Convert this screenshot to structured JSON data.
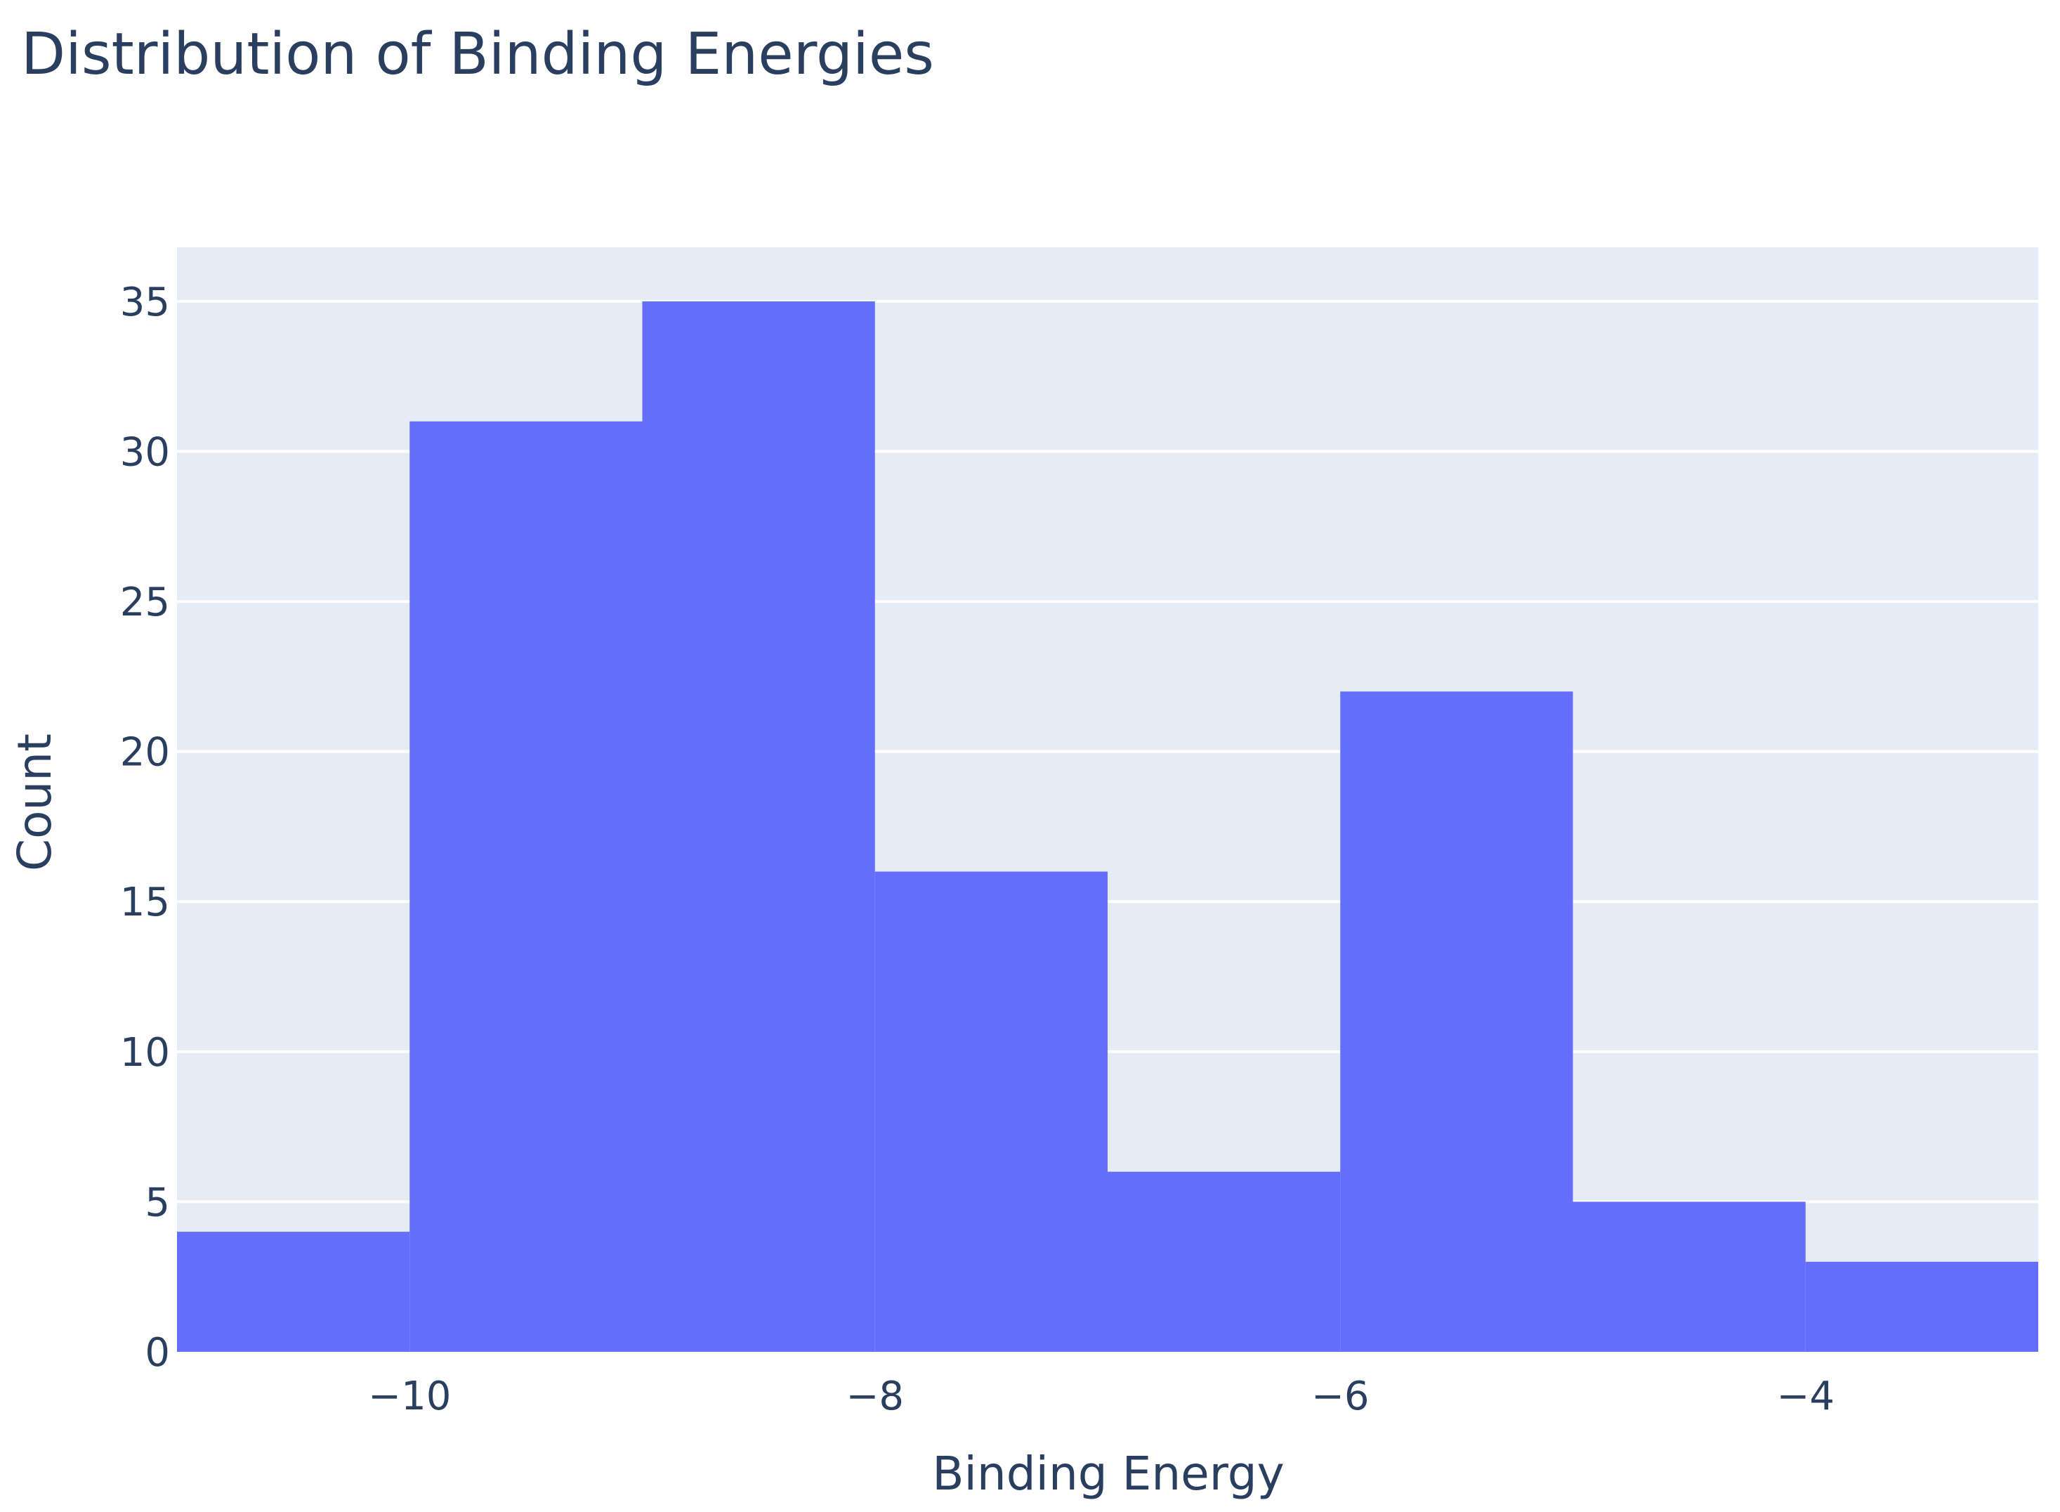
{
  "chart_data": {
    "type": "bar",
    "title": "Distribution of Binding Energies",
    "xlabel": "Binding Energy",
    "ylabel": "Count",
    "bins": [
      {
        "start": -11,
        "end": -10,
        "count": 4
      },
      {
        "start": -10,
        "end": -9,
        "count": 31
      },
      {
        "start": -9,
        "end": -8,
        "count": 35
      },
      {
        "start": -8,
        "end": -7,
        "count": 16
      },
      {
        "start": -7,
        "end": -6,
        "count": 6
      },
      {
        "start": -6,
        "end": -5,
        "count": 22
      },
      {
        "start": -5,
        "end": -4,
        "count": 5
      },
      {
        "start": -4,
        "end": -3,
        "count": 3
      }
    ],
    "xlim": [
      -11,
      -3
    ],
    "ylim": [
      0,
      36.8
    ],
    "x_ticks": [
      -10,
      -8,
      -6,
      -4
    ],
    "x_tick_labels": [
      "−10",
      "−8",
      "−6",
      "−4"
    ],
    "y_ticks": [
      0,
      5,
      10,
      15,
      20,
      25,
      30,
      35
    ],
    "y_tick_labels": [
      "0",
      "5",
      "10",
      "15",
      "20",
      "25",
      "30",
      "35"
    ],
    "grid": true,
    "legend": false,
    "colors": {
      "bar": "#636efa",
      "plot_background": "#e5ecf6",
      "gridline": "#ffffff",
      "text": "#2a3f5f"
    }
  }
}
